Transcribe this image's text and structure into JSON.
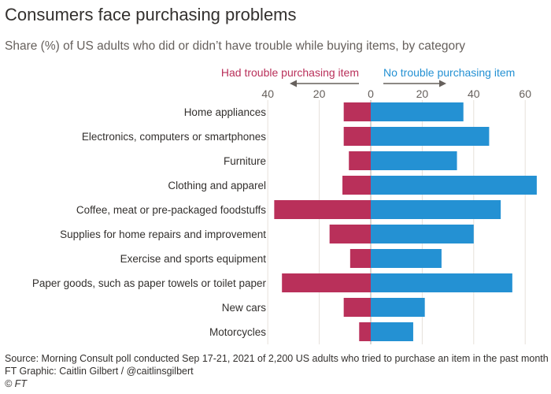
{
  "header": {
    "title": "Consumers face purchasing problems",
    "subtitle": "Share (%) of US adults who did or didn’t have trouble while buying items, by category"
  },
  "chart_data": {
    "type": "bar",
    "orientation": "horizontal-diverging",
    "legend": {
      "left_label": "Had trouble purchasing item",
      "right_label": "No trouble purchasing item"
    },
    "x_ticks": [
      {
        "value": -40,
        "label": "40"
      },
      {
        "value": -20,
        "label": "20"
      },
      {
        "value": 0,
        "label": "0"
      },
      {
        "value": 20,
        "label": "20"
      },
      {
        "value": 40,
        "label": "40"
      },
      {
        "value": 60,
        "label": "60"
      }
    ],
    "xlim": [
      -40,
      64
    ],
    "categories": [
      "Home appliances",
      "Electronics, computers or smartphones",
      "Furniture",
      "Clothing and apparel",
      "Coffee, meat or pre-packaged foodstuffs",
      "Supplies for home repairs and improvement",
      "Exercise and sports equipment",
      "Paper goods, such as paper towels or toilet paper",
      "New cars",
      "Motorcycles"
    ],
    "series": [
      {
        "name": "Had trouble purchasing item",
        "color": "#b9305a",
        "values": [
          10.5,
          10.5,
          8.5,
          11,
          37.5,
          16,
          8,
          34.5,
          10.5,
          4.5
        ]
      },
      {
        "name": "No trouble purchasing item",
        "color": "#2491d3",
        "values": [
          36,
          46,
          33.5,
          64.5,
          50.5,
          40,
          27.5,
          55,
          21,
          16.5
        ]
      }
    ],
    "grid": true
  },
  "footer": {
    "source": "Source: Morning Consult poll conducted Sep 17-21, 2021 of 2,200 US adults who tried to purchase an item in the past month",
    "graphic": "FT Graphic: Caitlin Gilbert / @caitlinsgilbert",
    "credit": "© FT"
  }
}
